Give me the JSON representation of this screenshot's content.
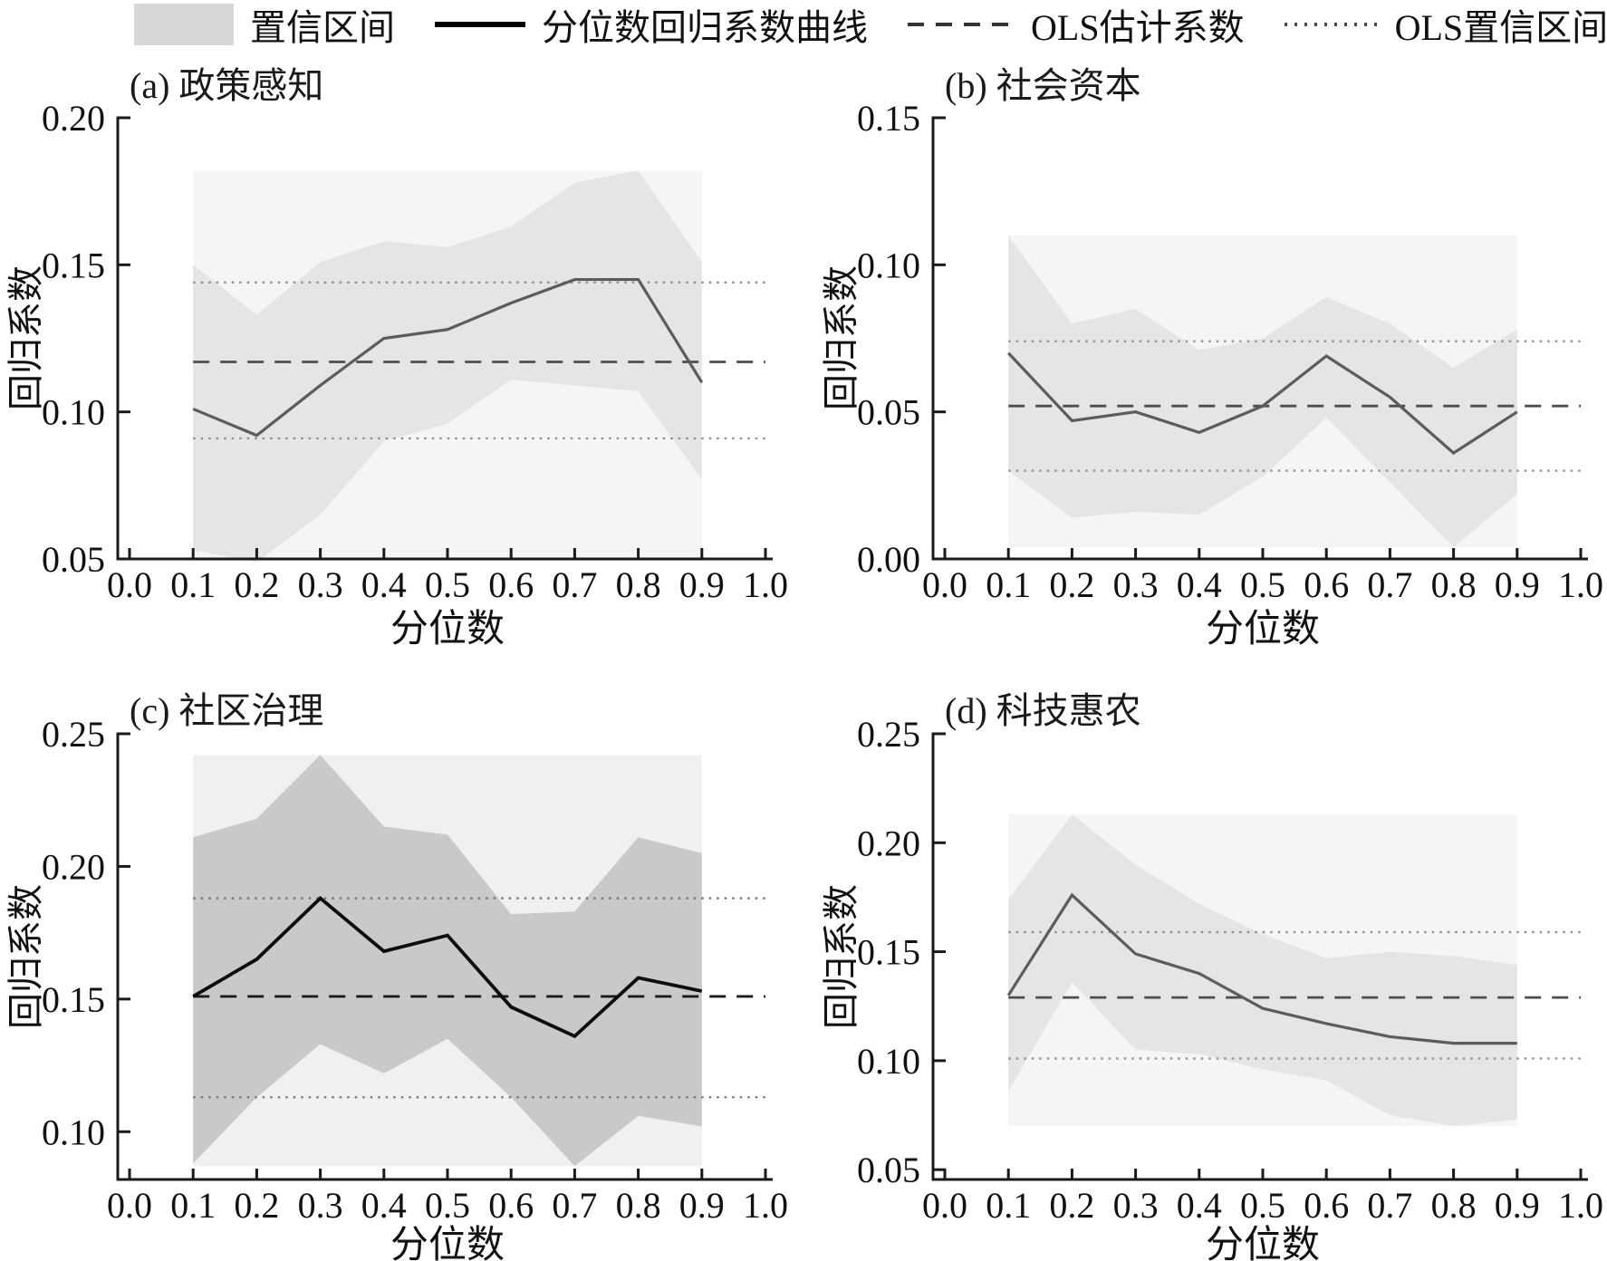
{
  "legend": {
    "items": [
      {
        "label": "置信区间",
        "swatch": "band",
        "color": "#d8d8d8"
      },
      {
        "label": "分位数回归系数曲线",
        "swatch": "solid",
        "color": "#000000"
      },
      {
        "label": "OLS估计系数",
        "swatch": "dashed",
        "color": "#333333"
      },
      {
        "label": "OLS置信区间",
        "swatch": "dotted",
        "color": "#4a4a4a"
      }
    ]
  },
  "shared": {
    "x_label": "分位数",
    "y_label": "回归系数",
    "xticks": [
      0.0,
      0.1,
      0.2,
      0.3,
      0.4,
      0.5,
      0.6,
      0.7,
      0.8,
      0.9,
      1.0
    ],
    "xlim": [
      0.0,
      1.0
    ]
  },
  "chart_data": [
    {
      "type": "line",
      "title": "(a) 政策感知",
      "x": [
        0.1,
        0.2,
        0.3,
        0.4,
        0.5,
        0.6,
        0.7,
        0.8,
        0.9
      ],
      "quantile_coef": [
        0.101,
        0.092,
        0.109,
        0.125,
        0.128,
        0.137,
        0.145,
        0.145,
        0.11
      ],
      "band_upper": [
        0.15,
        0.133,
        0.151,
        0.158,
        0.156,
        0.163,
        0.178,
        0.182,
        0.151
      ],
      "band_lower": [
        0.053,
        0.049,
        0.065,
        0.09,
        0.096,
        0.111,
        0.109,
        0.107,
        0.077
      ],
      "ols_coef": 0.117,
      "ols_ci": [
        0.091,
        0.144
      ],
      "ylim": [
        0.05,
        0.2
      ],
      "yticks": [
        0.05,
        0.1,
        0.15,
        0.2
      ],
      "colors": {
        "band": "#e5e5e5",
        "backdrop": "#f5f5f5",
        "line": "#5c5c5c",
        "ols": "#4d4d4d",
        "ols_ci": "#8f8f8f"
      },
      "line_width": 3.2
    },
    {
      "type": "line",
      "title": "(b) 社会资本",
      "x": [
        0.1,
        0.2,
        0.3,
        0.4,
        0.5,
        0.6,
        0.7,
        0.8,
        0.9
      ],
      "quantile_coef": [
        0.07,
        0.047,
        0.05,
        0.043,
        0.052,
        0.069,
        0.055,
        0.036,
        0.05
      ],
      "band_upper": [
        0.11,
        0.08,
        0.085,
        0.071,
        0.075,
        0.089,
        0.08,
        0.065,
        0.078
      ],
      "band_lower": [
        0.03,
        0.014,
        0.016,
        0.015,
        0.028,
        0.048,
        0.026,
        0.004,
        0.022
      ],
      "ols_coef": 0.052,
      "ols_ci": [
        0.03,
        0.074
      ],
      "ylim": [
        0.0,
        0.15
      ],
      "yticks": [
        0.0,
        0.05,
        0.1,
        0.15
      ],
      "colors": {
        "band": "#e5e5e5",
        "backdrop": "#f5f5f5",
        "line": "#5c5c5c",
        "ols": "#4d4d4d",
        "ols_ci": "#8f8f8f"
      },
      "line_width": 3.2
    },
    {
      "type": "line",
      "title": "(c) 社区治理",
      "x": [
        0.1,
        0.2,
        0.3,
        0.4,
        0.5,
        0.6,
        0.7,
        0.8,
        0.9
      ],
      "quantile_coef": [
        0.151,
        0.165,
        0.188,
        0.168,
        0.174,
        0.147,
        0.136,
        0.158,
        0.153
      ],
      "band_upper": [
        0.211,
        0.218,
        0.242,
        0.215,
        0.212,
        0.182,
        0.183,
        0.211,
        0.205
      ],
      "band_lower": [
        0.088,
        0.113,
        0.133,
        0.122,
        0.135,
        0.113,
        0.087,
        0.106,
        0.102
      ],
      "ols_coef": 0.151,
      "ols_ci": [
        0.113,
        0.188
      ],
      "ylim": [
        0.082,
        0.25
      ],
      "yticks": [
        0.1,
        0.15,
        0.2,
        0.25
      ],
      "colors": {
        "band": "#c9c9c9",
        "backdrop": "#f0f0f0",
        "line": "#0d0d0d",
        "ols": "#1a1a1a",
        "ols_ci": "#757575"
      },
      "line_width": 3.8
    },
    {
      "type": "line",
      "title": "(d) 科技惠农",
      "x": [
        0.1,
        0.2,
        0.3,
        0.4,
        0.5,
        0.6,
        0.7,
        0.8,
        0.9
      ],
      "quantile_coef": [
        0.13,
        0.176,
        0.149,
        0.14,
        0.124,
        0.117,
        0.111,
        0.108,
        0.108
      ],
      "band_upper": [
        0.174,
        0.213,
        0.19,
        0.172,
        0.158,
        0.147,
        0.15,
        0.148,
        0.144
      ],
      "band_lower": [
        0.086,
        0.136,
        0.105,
        0.103,
        0.096,
        0.091,
        0.075,
        0.07,
        0.073
      ],
      "ols_coef": 0.129,
      "ols_ci": [
        0.101,
        0.159
      ],
      "ylim": [
        0.0455,
        0.25
      ],
      "yticks": [
        0.05,
        0.1,
        0.15,
        0.2,
        0.25
      ],
      "colors": {
        "band": "#e5e5e5",
        "backdrop": "#f5f5f5",
        "line": "#5c5c5c",
        "ols": "#4d4d4d",
        "ols_ci": "#8f8f8f"
      },
      "line_width": 3.2
    }
  ]
}
